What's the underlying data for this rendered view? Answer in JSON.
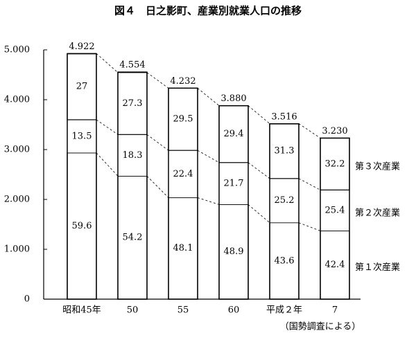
{
  "chart_data": {
    "type": "stacked-bar",
    "title": "図４　日之影町、産業別就業人口の推移",
    "categories": [
      "昭和45年",
      "50",
      "55",
      "60",
      "平成２年",
      "7"
    ],
    "totals": {
      "values": [
        4922,
        4554,
        4232,
        3880,
        3516,
        3230
      ],
      "value_labels": [
        "4.922",
        "4.554",
        "4.232",
        "3.880",
        "3.516",
        "3.230"
      ]
    },
    "series": [
      {
        "name": "第１次産業",
        "values": [
          59.6,
          54.2,
          48.1,
          48.9,
          43.6,
          42.4
        ]
      },
      {
        "name": "第２次産業",
        "values": [
          13.5,
          18.3,
          22.4,
          21.7,
          25.2,
          25.4
        ]
      },
      {
        "name": "第３次産業",
        "values": [
          27.0,
          27.3,
          29.5,
          29.4,
          31.3,
          32.2
        ]
      }
    ],
    "ylim": [
      0,
      5000
    ],
    "yticks": [
      0,
      {
        "value": 1000,
        "label": "1.000"
      },
      {
        "value": 2000,
        "label": "2.000"
      },
      {
        "value": 3000,
        "label": "3.000"
      },
      {
        "value": 4000,
        "label": "4.000"
      },
      {
        "value": 5000,
        "label": "5.000"
      }
    ],
    "source_note": "（国勢調査による）"
  }
}
